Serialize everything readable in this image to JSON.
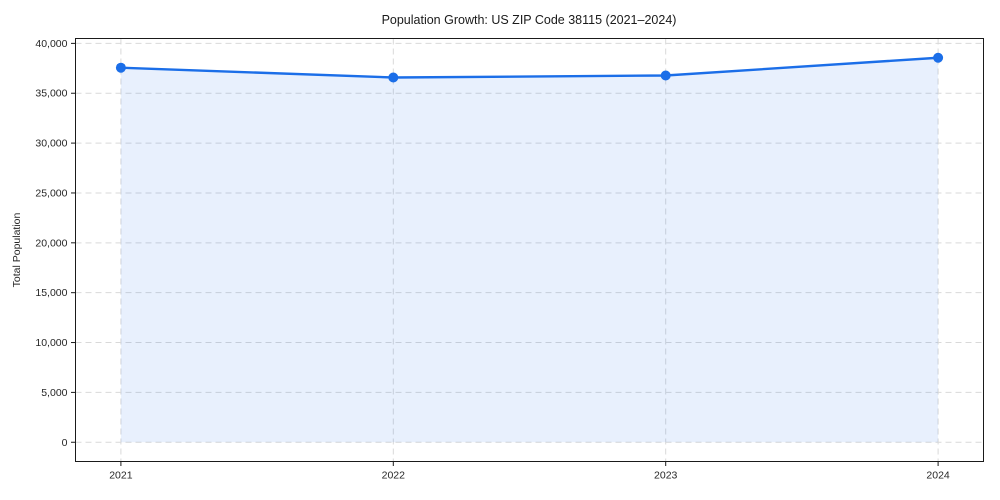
{
  "chart_data": {
    "type": "line",
    "title": "Population Growth: US ZIP Code 38115 (2021–2024)",
    "xlabel": "",
    "ylabel": "Total Population",
    "categories": [
      "2021",
      "2022",
      "2023",
      "2024"
    ],
    "values": [
      37560,
      36580,
      36780,
      38560
    ],
    "series_name": "Total Population",
    "yticks": [
      0,
      5000,
      10000,
      15000,
      20000,
      25000,
      30000,
      35000,
      40000
    ],
    "ytick_labels": [
      "0",
      "5,000",
      "10,000",
      "15,000",
      "20,000",
      "25,000",
      "30,000",
      "35,000",
      "40,000"
    ],
    "ylim": [
      -1930,
      40490
    ],
    "grid": "dashed-both-axes",
    "legend": "none",
    "marker": "circle",
    "area_fill": true,
    "colors": {
      "line": "#1b6ee8",
      "marker": "#1b6ee8",
      "area_fill_rgba": "rgba(27,110,232,0.10)",
      "grid": "#d9d9d9",
      "spine": "#1a1a1a",
      "text": "#262626",
      "background": "#ffffff"
    }
  }
}
